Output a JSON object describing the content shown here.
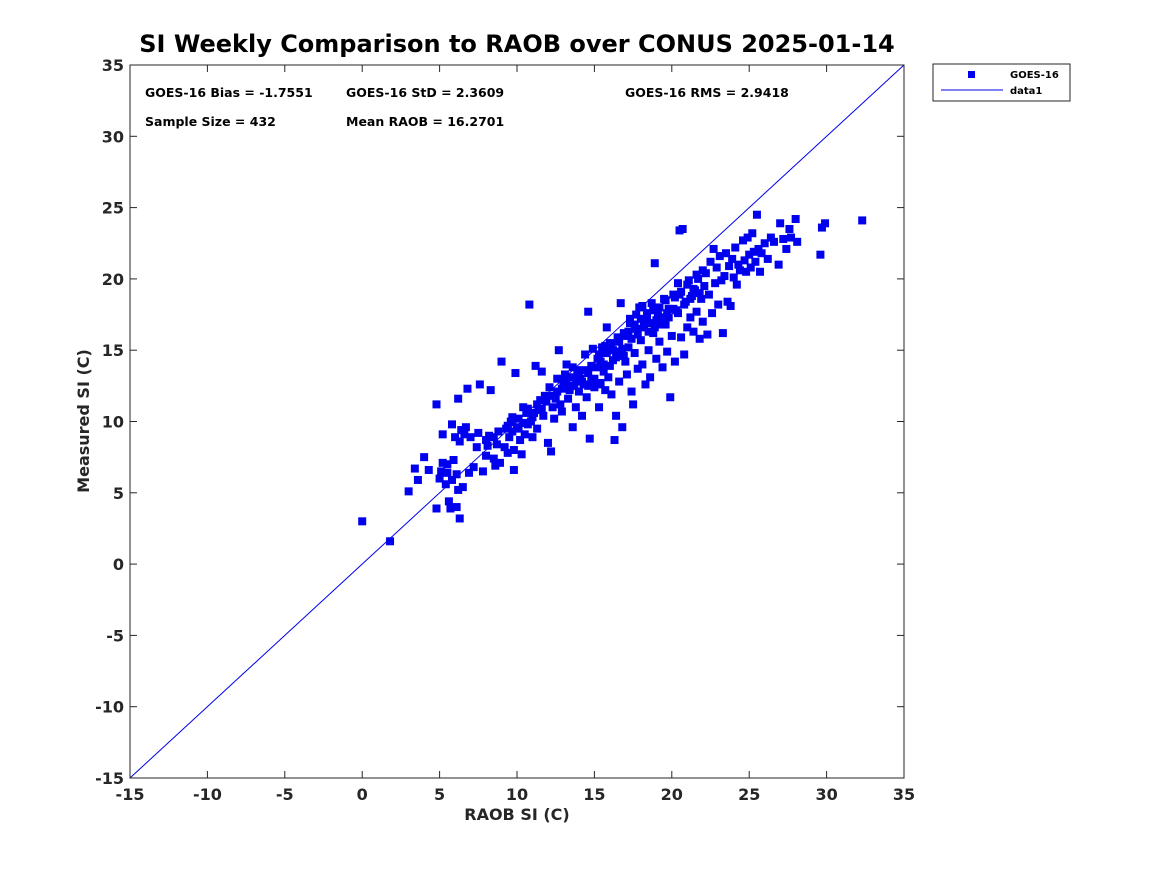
{
  "chart_data": {
    "type": "scatter",
    "title": "SI Weekly Comparison to RAOB over CONUS 2025-01-14",
    "xlabel": "RAOB SI (C)",
    "ylabel": "Measured SI (C)",
    "xlim": [
      -15,
      35
    ],
    "ylim": [
      -15,
      35
    ],
    "xticks": [
      "-15",
      "-10",
      "-5",
      "0",
      "5",
      "10",
      "15",
      "20",
      "25",
      "30",
      "35"
    ],
    "yticks": [
      "-15",
      "-10",
      "-5",
      "0",
      "5",
      "10",
      "15",
      "20",
      "25",
      "30",
      "35"
    ],
    "grid": false,
    "legend_position": "outside-top-right",
    "annotations": {
      "bias": "GOES-16 Bias = -1.7551",
      "std": "GOES-16 StD = 2.3609",
      "rms": "GOES-16 RMS = 2.9418",
      "sample_size": "Sample Size = 432",
      "mean_raob": "Mean RAOB = 16.2701"
    },
    "series": [
      {
        "name": "GOES-16",
        "type": "scatter",
        "marker": "square",
        "color": "#0000ee",
        "points": [
          [
            0.0,
            3.0
          ],
          [
            1.8,
            1.6
          ],
          [
            3.0,
            5.1
          ],
          [
            3.4,
            6.7
          ],
          [
            3.6,
            5.9
          ],
          [
            4.0,
            7.5
          ],
          [
            4.3,
            6.6
          ],
          [
            4.8,
            3.9
          ],
          [
            4.8,
            11.2
          ],
          [
            5.0,
            6.0
          ],
          [
            5.1,
            6.5
          ],
          [
            5.2,
            7.1
          ],
          [
            5.2,
            9.1
          ],
          [
            5.4,
            5.6
          ],
          [
            5.5,
            6.4
          ],
          [
            5.5,
            7.0
          ],
          [
            5.6,
            4.4
          ],
          [
            5.7,
            3.9
          ],
          [
            5.8,
            5.9
          ],
          [
            5.8,
            9.8
          ],
          [
            5.9,
            7.3
          ],
          [
            6.0,
            8.9
          ],
          [
            6.1,
            4.0
          ],
          [
            6.1,
            6.3
          ],
          [
            6.2,
            5.2
          ],
          [
            6.2,
            11.6
          ],
          [
            6.3,
            3.2
          ],
          [
            6.3,
            8.6
          ],
          [
            6.4,
            9.4
          ],
          [
            6.5,
            5.4
          ],
          [
            6.6,
            9.1
          ],
          [
            6.7,
            9.6
          ],
          [
            6.8,
            12.3
          ],
          [
            6.9,
            6.4
          ],
          [
            7.0,
            8.9
          ],
          [
            7.2,
            6.8
          ],
          [
            7.4,
            8.2
          ],
          [
            7.5,
            9.2
          ],
          [
            7.6,
            12.6
          ],
          [
            7.8,
            6.5
          ],
          [
            8.0,
            7.6
          ],
          [
            8.0,
            8.7
          ],
          [
            8.1,
            8.3
          ],
          [
            8.2,
            9.0
          ],
          [
            8.3,
            12.2
          ],
          [
            8.5,
            7.4
          ],
          [
            8.5,
            8.9
          ],
          [
            8.6,
            6.9
          ],
          [
            8.7,
            8.4
          ],
          [
            8.8,
            9.3
          ],
          [
            8.9,
            7.1
          ],
          [
            9.0,
            14.2
          ],
          [
            9.2,
            8.2
          ],
          [
            9.3,
            9.5
          ],
          [
            9.4,
            7.8
          ],
          [
            9.5,
            8.9
          ],
          [
            9.6,
            10.0
          ],
          [
            9.7,
            9.3
          ],
          [
            9.8,
            6.6
          ],
          [
            9.8,
            8.0
          ],
          [
            9.9,
            13.4
          ],
          [
            10.0,
            9.6
          ],
          [
            10.1,
            10.2
          ],
          [
            10.2,
            8.7
          ],
          [
            10.3,
            7.7
          ],
          [
            10.4,
            11.0
          ],
          [
            10.5,
            9.1
          ],
          [
            10.6,
            10.6
          ],
          [
            10.7,
            9.8
          ],
          [
            10.8,
            18.2
          ],
          [
            10.9,
            10.0
          ],
          [
            11.0,
            8.9
          ],
          [
            11.1,
            10.6
          ],
          [
            11.2,
            13.9
          ],
          [
            11.3,
            9.5
          ],
          [
            11.4,
            10.8
          ],
          [
            11.5,
            11.5
          ],
          [
            11.6,
            13.5
          ],
          [
            11.7,
            10.4
          ],
          [
            11.8,
            11.8
          ],
          [
            12.0,
            8.5
          ],
          [
            12.1,
            12.4
          ],
          [
            12.2,
            7.9
          ],
          [
            12.3,
            11.0
          ],
          [
            12.4,
            10.2
          ],
          [
            12.5,
            11.6
          ],
          [
            12.6,
            12.1
          ],
          [
            12.7,
            15.0
          ],
          [
            12.8,
            11.2
          ],
          [
            12.9,
            10.7
          ],
          [
            13.0,
            12.8
          ],
          [
            13.1,
            13.3
          ],
          [
            13.2,
            14.0
          ],
          [
            13.3,
            11.6
          ],
          [
            13.4,
            12.2
          ],
          [
            13.5,
            13.1
          ],
          [
            13.6,
            9.6
          ],
          [
            13.7,
            12.5
          ],
          [
            13.8,
            11.0
          ],
          [
            13.9,
            13.6
          ],
          [
            14.0,
            12.1
          ],
          [
            14.1,
            13.0
          ],
          [
            14.2,
            10.4
          ],
          [
            14.3,
            12.6
          ],
          [
            14.4,
            14.7
          ],
          [
            14.5,
            11.7
          ],
          [
            14.6,
            13.4
          ],
          [
            14.6,
            17.7
          ],
          [
            14.7,
            8.8
          ],
          [
            14.8,
            12.9
          ],
          [
            14.9,
            15.1
          ],
          [
            15.0,
            12.4
          ],
          [
            15.1,
            13.8
          ],
          [
            15.2,
            14.4
          ],
          [
            15.3,
            11.0
          ],
          [
            15.4,
            12.7
          ],
          [
            15.5,
            15.2
          ],
          [
            15.6,
            14.0
          ],
          [
            15.7,
            12.2
          ],
          [
            15.8,
            16.6
          ],
          [
            15.9,
            13.1
          ],
          [
            16.0,
            15.5
          ],
          [
            16.1,
            11.9
          ],
          [
            16.2,
            14.3
          ],
          [
            16.3,
            8.7
          ],
          [
            16.4,
            10.4
          ],
          [
            16.5,
            15.9
          ],
          [
            16.6,
            12.8
          ],
          [
            16.7,
            18.3
          ],
          [
            16.8,
            9.6
          ],
          [
            16.9,
            14.6
          ],
          [
            17.0,
            16.0
          ],
          [
            17.1,
            13.3
          ],
          [
            17.2,
            15.2
          ],
          [
            17.3,
            17.2
          ],
          [
            17.4,
            12.1
          ],
          [
            17.5,
            11.2
          ],
          [
            17.6,
            14.8
          ],
          [
            17.7,
            16.5
          ],
          [
            17.8,
            13.7
          ],
          [
            17.9,
            18.0
          ],
          [
            18.0,
            15.7
          ],
          [
            18.1,
            14.0
          ],
          [
            18.2,
            16.9
          ],
          [
            18.3,
            12.6
          ],
          [
            18.4,
            17.4
          ],
          [
            18.5,
            15.0
          ],
          [
            18.6,
            13.1
          ],
          [
            18.7,
            18.3
          ],
          [
            18.8,
            16.2
          ],
          [
            18.9,
            21.1
          ],
          [
            19.0,
            14.4
          ],
          [
            19.1,
            17.5
          ],
          [
            19.2,
            15.6
          ],
          [
            19.3,
            17.0
          ],
          [
            19.4,
            13.8
          ],
          [
            19.5,
            18.6
          ],
          [
            19.6,
            16.8
          ],
          [
            19.7,
            14.9
          ],
          [
            19.8,
            17.3
          ],
          [
            19.9,
            11.7
          ],
          [
            20.0,
            16.0
          ],
          [
            20.1,
            18.9
          ],
          [
            20.2,
            14.2
          ],
          [
            20.3,
            17.8
          ],
          [
            20.4,
            19.7
          ],
          [
            20.5,
            23.4
          ],
          [
            20.6,
            15.9
          ],
          [
            20.7,
            23.5
          ],
          [
            20.8,
            14.7
          ],
          [
            20.9,
            18.4
          ],
          [
            21.0,
            16.6
          ],
          [
            21.1,
            19.9
          ],
          [
            21.2,
            17.3
          ],
          [
            21.3,
            18.8
          ],
          [
            21.4,
            16.3
          ],
          [
            21.5,
            19.2
          ],
          [
            21.6,
            17.7
          ],
          [
            21.7,
            20.0
          ],
          [
            21.8,
            15.8
          ],
          [
            21.9,
            18.6
          ],
          [
            22.0,
            17.0
          ],
          [
            22.1,
            19.5
          ],
          [
            22.2,
            20.4
          ],
          [
            22.3,
            16.1
          ],
          [
            22.4,
            18.9
          ],
          [
            22.5,
            21.2
          ],
          [
            22.6,
            17.6
          ],
          [
            22.7,
            22.1
          ],
          [
            22.8,
            19.7
          ],
          [
            22.9,
            20.8
          ],
          [
            23.0,
            18.2
          ],
          [
            23.1,
            21.6
          ],
          [
            23.2,
            19.9
          ],
          [
            23.3,
            16.2
          ],
          [
            23.4,
            20.2
          ],
          [
            23.5,
            21.8
          ],
          [
            23.6,
            18.4
          ],
          [
            23.7,
            20.9
          ],
          [
            23.8,
            18.1
          ],
          [
            23.9,
            21.4
          ],
          [
            24.0,
            20.1
          ],
          [
            24.1,
            22.2
          ],
          [
            24.2,
            19.6
          ],
          [
            24.3,
            21.0
          ],
          [
            24.4,
            20.6
          ],
          [
            24.6,
            22.7
          ],
          [
            24.7,
            21.3
          ],
          [
            24.8,
            20.5
          ],
          [
            24.9,
            22.9
          ],
          [
            25.0,
            21.7
          ],
          [
            25.1,
            20.8
          ],
          [
            25.2,
            23.2
          ],
          [
            25.3,
            21.9
          ],
          [
            25.4,
            21.2
          ],
          [
            25.5,
            24.5
          ],
          [
            25.6,
            22.1
          ],
          [
            25.7,
            20.5
          ],
          [
            25.8,
            21.8
          ],
          [
            26.0,
            22.5
          ],
          [
            26.2,
            21.4
          ],
          [
            26.4,
            22.9
          ],
          [
            26.6,
            22.6
          ],
          [
            26.9,
            21.0
          ],
          [
            27.0,
            23.9
          ],
          [
            27.2,
            22.8
          ],
          [
            27.4,
            22.1
          ],
          [
            27.6,
            23.5
          ],
          [
            27.7,
            22.9
          ],
          [
            28.0,
            24.2
          ],
          [
            28.1,
            22.6
          ],
          [
            29.6,
            21.7
          ],
          [
            29.7,
            23.6
          ],
          [
            29.9,
            23.9
          ],
          [
            32.3,
            24.1
          ],
          [
            14.0,
            13.2
          ],
          [
            14.2,
            12.8
          ],
          [
            14.4,
            13.6
          ],
          [
            14.6,
            12.5
          ],
          [
            14.8,
            13.9
          ],
          [
            15.0,
            13.0
          ],
          [
            15.2,
            12.6
          ],
          [
            15.4,
            14.2
          ],
          [
            15.6,
            13.5
          ],
          [
            15.8,
            14.8
          ],
          [
            16.0,
            13.9
          ],
          [
            16.2,
            15.0
          ],
          [
            16.4,
            14.5
          ],
          [
            16.6,
            15.6
          ],
          [
            16.8,
            15.1
          ],
          [
            17.0,
            14.2
          ],
          [
            17.2,
            16.3
          ],
          [
            17.4,
            15.8
          ],
          [
            17.6,
            16.8
          ],
          [
            17.8,
            16.1
          ],
          [
            18.0,
            17.2
          ],
          [
            18.2,
            16.6
          ],
          [
            18.4,
            17.6
          ],
          [
            18.6,
            16.9
          ],
          [
            18.8,
            17.8
          ],
          [
            19.0,
            17.1
          ],
          [
            19.2,
            18.0
          ],
          [
            19.4,
            17.3
          ],
          [
            19.6,
            18.5
          ],
          [
            19.8,
            17.9
          ],
          [
            20.2,
            18.7
          ],
          [
            20.4,
            17.6
          ],
          [
            20.6,
            19.1
          ],
          [
            20.8,
            18.2
          ],
          [
            21.0,
            19.6
          ],
          [
            21.2,
            18.6
          ],
          [
            21.4,
            19.3
          ],
          [
            21.6,
            20.3
          ],
          [
            21.8,
            19.0
          ],
          [
            22.0,
            20.6
          ],
          [
            13.8,
            12.9
          ],
          [
            13.6,
            13.8
          ],
          [
            13.4,
            12.4
          ],
          [
            13.2,
            12.9
          ],
          [
            12.9,
            12.3
          ],
          [
            12.6,
            13.0
          ],
          [
            12.3,
            11.8
          ],
          [
            11.9,
            11.4
          ],
          [
            11.6,
            10.9
          ],
          [
            11.3,
            11.2
          ],
          [
            11.0,
            10.3
          ],
          [
            10.7,
            10.9
          ],
          [
            10.4,
            9.9
          ],
          [
            10.1,
            9.5
          ],
          [
            9.7,
            10.3
          ],
          [
            9.4,
            9.7
          ],
          [
            15.3,
            14.7
          ],
          [
            15.7,
            15.3
          ],
          [
            16.1,
            15.4
          ],
          [
            16.5,
            14.9
          ],
          [
            16.9,
            16.2
          ],
          [
            17.3,
            16.9
          ],
          [
            17.7,
            17.5
          ],
          [
            18.1,
            18.1
          ],
          [
            18.5,
            16.3
          ],
          [
            18.9,
            16.6
          ],
          [
            19.3,
            16.8
          ],
          [
            19.7,
            17.6
          ],
          [
            20.1,
            17.9
          ],
          [
            20.5,
            18.9
          ]
        ]
      },
      {
        "name": "data1",
        "type": "line",
        "color": "#0000ee",
        "points": [
          [
            -15,
            -15
          ],
          [
            35,
            35
          ]
        ]
      }
    ]
  }
}
